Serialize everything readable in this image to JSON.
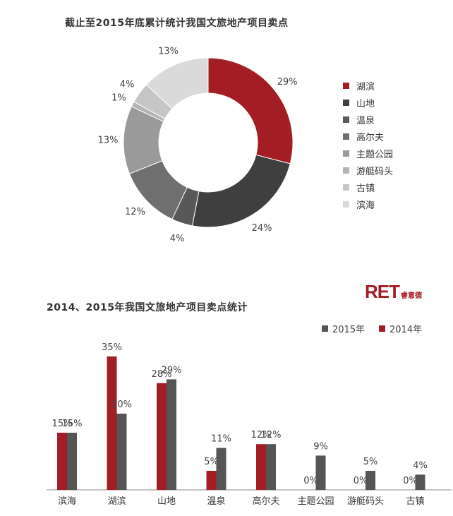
{
  "chart_data": [
    {
      "type": "pie",
      "title": "截止至2015年底累计统计我国文旅地产项目卖点",
      "categories": [
        "湖滨",
        "山地",
        "温泉",
        "高尔夫",
        "主题公园",
        "游艇码头",
        "古镇",
        "滨海"
      ],
      "values": [
        29,
        24,
        4,
        12,
        13,
        1,
        4,
        13
      ],
      "value_labels": [
        "29%",
        "24%",
        "4%",
        "12%",
        "13%",
        "1%",
        "4%",
        "13%"
      ],
      "colors": [
        "#a31d24",
        "#3f3f3f",
        "#585858",
        "#6f6f6f",
        "#9a9a9a",
        "#b4b4b4",
        "#c6c6c6",
        "#dadada"
      ],
      "donut": true,
      "legend_position": "right"
    },
    {
      "type": "bar",
      "title": "2014、2015年我国文旅地产项目卖点统计",
      "categories": [
        "滨海",
        "湖滨",
        "山地",
        "温泉",
        "高尔夫",
        "主题公园",
        "游艇码头",
        "古镇"
      ],
      "series": [
        {
          "name": "2014年",
          "values": [
            15,
            35,
            28,
            5,
            12,
            0,
            0,
            0
          ],
          "labels": [
            "15%",
            "35%",
            "28%",
            "5%",
            "12%",
            "0%",
            "0%",
            "0%"
          ],
          "color": "#a31d24"
        },
        {
          "name": "2015年",
          "values": [
            15,
            20,
            29,
            11,
            12,
            9,
            5,
            4
          ],
          "labels": [
            "15%",
            "20%",
            "29%",
            "11%",
            "12%",
            "9%",
            "5%",
            "4%"
          ],
          "color": "#555555"
        }
      ],
      "legend_order": [
        "2015年",
        "2014年"
      ],
      "legend_position": "top-right",
      "ylim": [
        0,
        35
      ],
      "grid": false
    }
  ],
  "logo": {
    "mark": "RET",
    "sub": "睿意德"
  }
}
